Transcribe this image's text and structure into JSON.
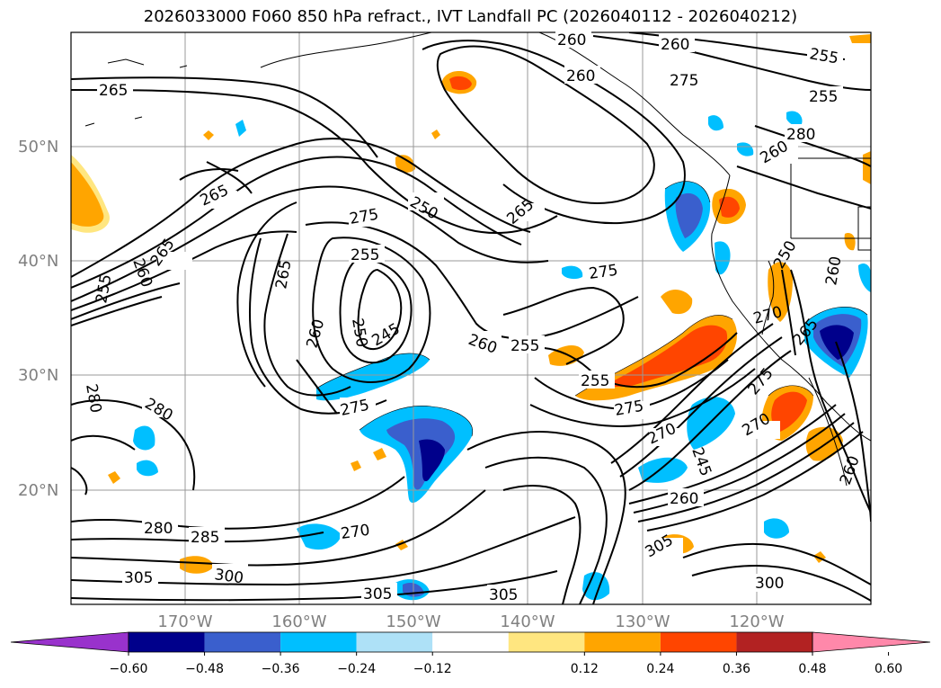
{
  "title": "2026033000 F060 850 hPa refract., IVT Landfall PC (2026040112 - 2026040212)",
  "lat_labels": [
    "50°N",
    "40°N",
    "30°N",
    "20°N"
  ],
  "lon_labels": [
    "170°W",
    "160°W",
    "150°W",
    "140°W",
    "130°W",
    "120°W"
  ],
  "contour_labels": [
    "265",
    "265",
    "265",
    "260",
    "255",
    "250",
    "275",
    "265",
    "255",
    "265",
    "260",
    "250",
    "245",
    "275",
    "260",
    "255",
    "275",
    "280",
    "280",
    "280",
    "285",
    "305",
    "300",
    "270",
    "305",
    "305",
    "255",
    "275",
    "270",
    "245",
    "260",
    "305",
    "300",
    "270",
    "270",
    "275",
    "265",
    "260",
    "260",
    "260",
    "260",
    "255",
    "255",
    "260",
    "275",
    "280",
    "250",
    "260"
  ],
  "colorbar": {
    "ticks": [
      "−0.60",
      "−0.48",
      "−0.36",
      "−0.24",
      "−0.12",
      "0.12",
      "0.24",
      "0.36",
      "0.48",
      "0.60"
    ],
    "colors": [
      "#9932cc",
      "#00008b",
      "#3a5fcd",
      "#00bfff",
      "#aee1f7",
      "#ffffff",
      "#ffe680",
      "#ffa500",
      "#ff4500",
      "#b22222",
      "#ff88aa"
    ]
  },
  "shading_colors": {
    "dark_blue": "#00008b",
    "blue": "#3a5fcd",
    "cyan": "#00bfff",
    "light_blue": "#aee1f7",
    "yellow": "#ffe680",
    "orange": "#ffa500",
    "red_orange": "#ff4500"
  }
}
